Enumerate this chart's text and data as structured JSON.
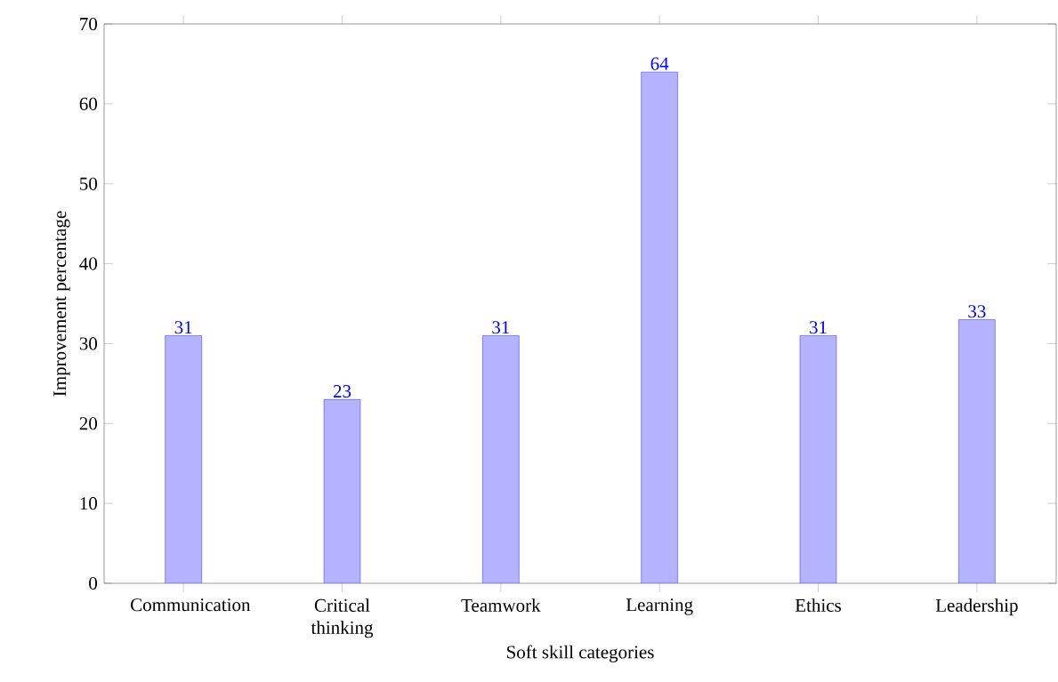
{
  "chart_data": {
    "type": "bar",
    "xlabel": "Soft skill categories",
    "ylabel": "Improvement percentage",
    "categories": [
      "Communication",
      "Critical thinking",
      "Teamwork",
      "Learning",
      "Ethics",
      "Leadership"
    ],
    "values": [
      31,
      23,
      31,
      64,
      31,
      33
    ],
    "color": "#b3b3ff",
    "ylim": [
      0,
      70
    ],
    "yticks": [
      0,
      10,
      20,
      30,
      40,
      50,
      60,
      70
    ],
    "data_labels": true
  }
}
